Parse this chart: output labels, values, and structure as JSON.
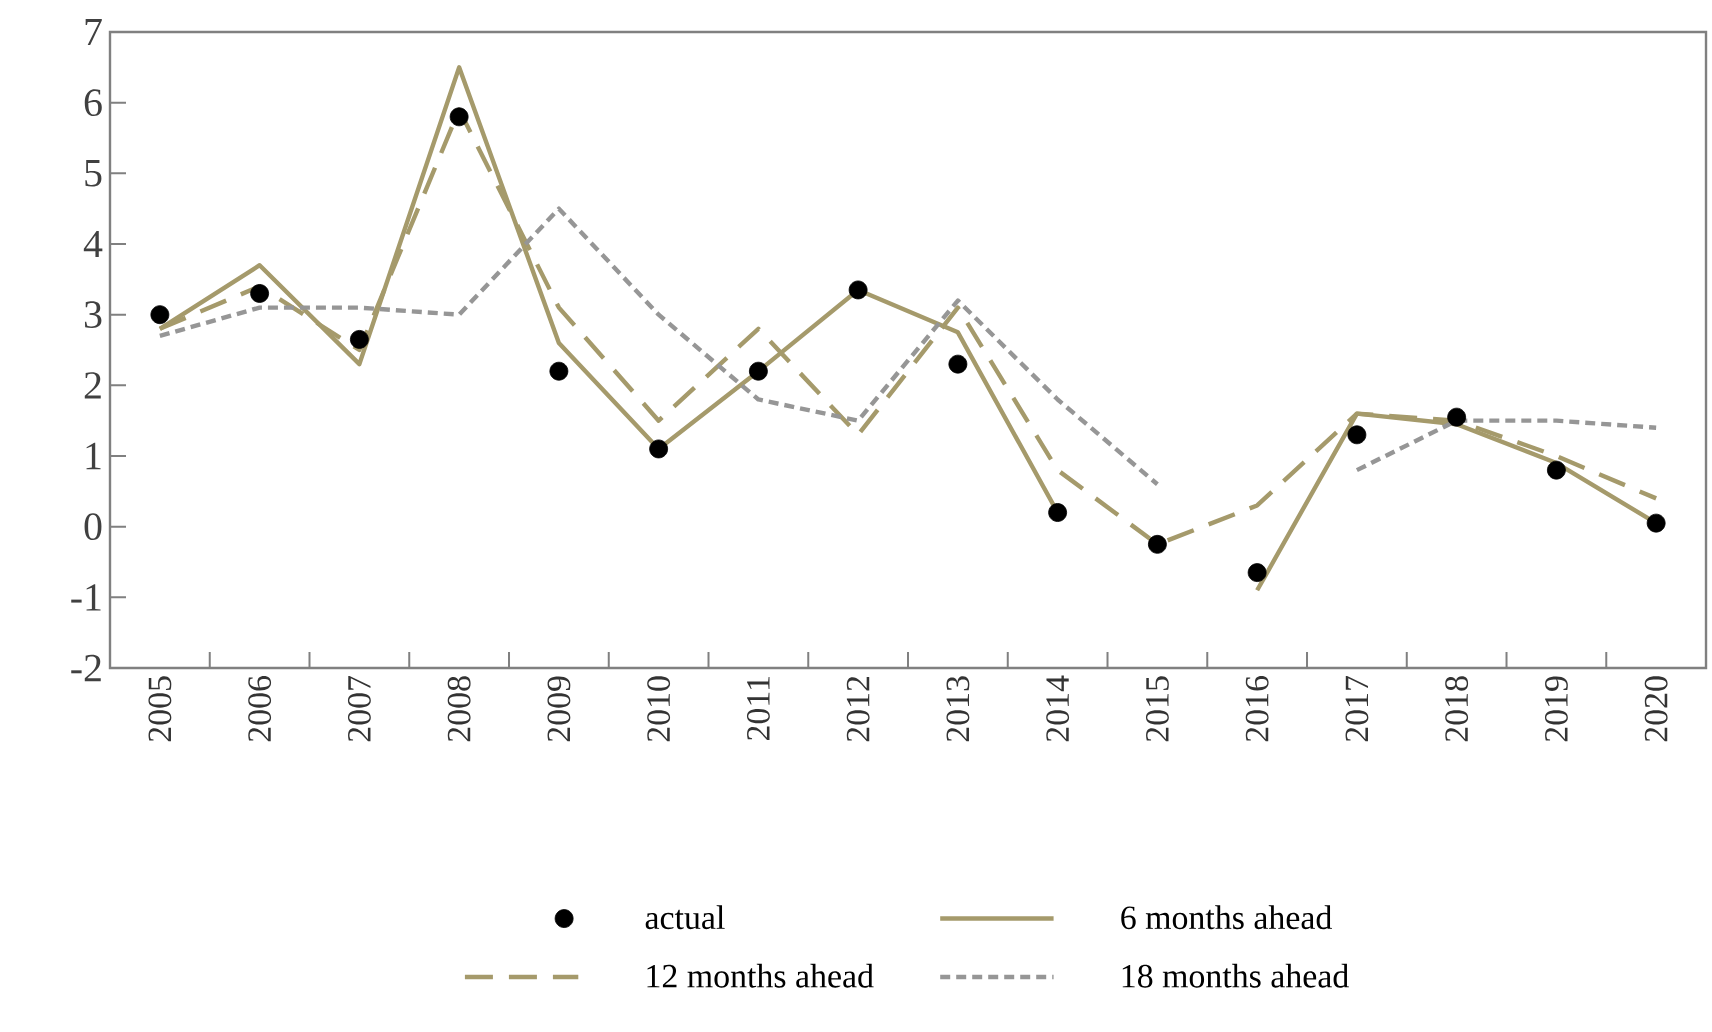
{
  "chart_data": {
    "type": "line",
    "categories": [
      "2005",
      "2006",
      "2007",
      "2008",
      "2009",
      "2010",
      "2011",
      "2012",
      "2013",
      "2014",
      "2015",
      "2016",
      "2017",
      "2018",
      "2019",
      "2020"
    ],
    "series": [
      {
        "name": "actual",
        "type": "scatter",
        "color": "#000000",
        "values": [
          3.0,
          3.3,
          2.65,
          5.8,
          2.2,
          1.1,
          2.2,
          3.35,
          2.3,
          0.2,
          -0.25,
          -0.65,
          1.3,
          1.55,
          0.8,
          0.05
        ]
      },
      {
        "name": "6 months ahead",
        "color": "#a59a6b",
        "line_style": "solid",
        "values": [
          2.8,
          3.7,
          2.3,
          6.5,
          2.6,
          1.1,
          2.2,
          3.35,
          2.75,
          0.2,
          null,
          -0.9,
          1.6,
          1.45,
          0.9,
          0.05
        ]
      },
      {
        "name": "12 months ahead",
        "color": "#a59a6b",
        "line_style": "dashed",
        "values": [
          2.8,
          3.4,
          2.5,
          5.9,
          3.1,
          1.5,
          2.8,
          1.3,
          3.1,
          0.8,
          -0.25,
          0.3,
          1.6,
          1.5,
          1.0,
          0.4
        ]
      },
      {
        "name": "18 months ahead",
        "color": "#969696",
        "line_style": "dotted",
        "values": [
          2.7,
          3.1,
          3.1,
          3.0,
          4.5,
          3.0,
          1.8,
          1.5,
          3.2,
          1.8,
          0.6,
          null,
          0.8,
          1.5,
          1.5,
          1.4
        ]
      }
    ],
    "ylim": [
      -2,
      7
    ],
    "yticks": [
      -2,
      -1,
      0,
      1,
      2,
      3,
      4,
      5,
      6,
      7
    ],
    "legend": "bottom",
    "grid": false
  }
}
